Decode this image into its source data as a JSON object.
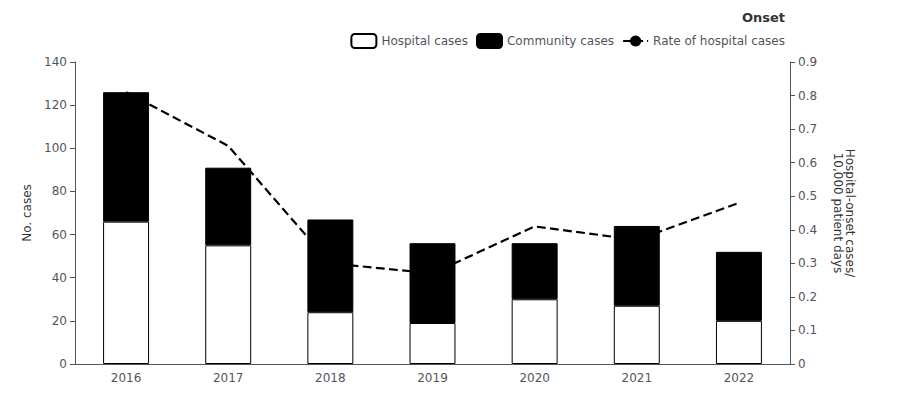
{
  "chart_data": {
    "type": "bar",
    "categories": [
      "2016",
      "2017",
      "2018",
      "2019",
      "2020",
      "2021",
      "2022"
    ],
    "series": [
      {
        "name": "Hospital cases",
        "type": "bar",
        "color": "white",
        "values": [
          66,
          55,
          24,
          19,
          30,
          27,
          20
        ]
      },
      {
        "name": "Community cases",
        "type": "bar",
        "color": "black",
        "values": [
          60,
          36,
          43,
          37,
          26,
          37,
          32
        ]
      },
      {
        "name": "Rate of hospital cases",
        "type": "line",
        "axis": "y2",
        "color": "black",
        "line_style": "dashed",
        "values": [
          0.81,
          0.65,
          0.3,
          0.27,
          0.41,
          0.37,
          0.48
        ]
      }
    ],
    "ylabel": "No. cases",
    "y2label": "Hospital-onset cases/\n10,000 patient days",
    "ylim": [
      0,
      140
    ],
    "yticks": [
      0,
      20,
      40,
      60,
      80,
      100,
      120,
      140
    ],
    "y2lim": [
      0,
      0.9
    ],
    "y2ticks": [
      0,
      0.1,
      0.2,
      0.3,
      0.4,
      0.5,
      0.6,
      0.7,
      0.8,
      0.9
    ],
    "stacked": true,
    "grid": false,
    "legend": "upper right",
    "legend_title": "Onset"
  }
}
